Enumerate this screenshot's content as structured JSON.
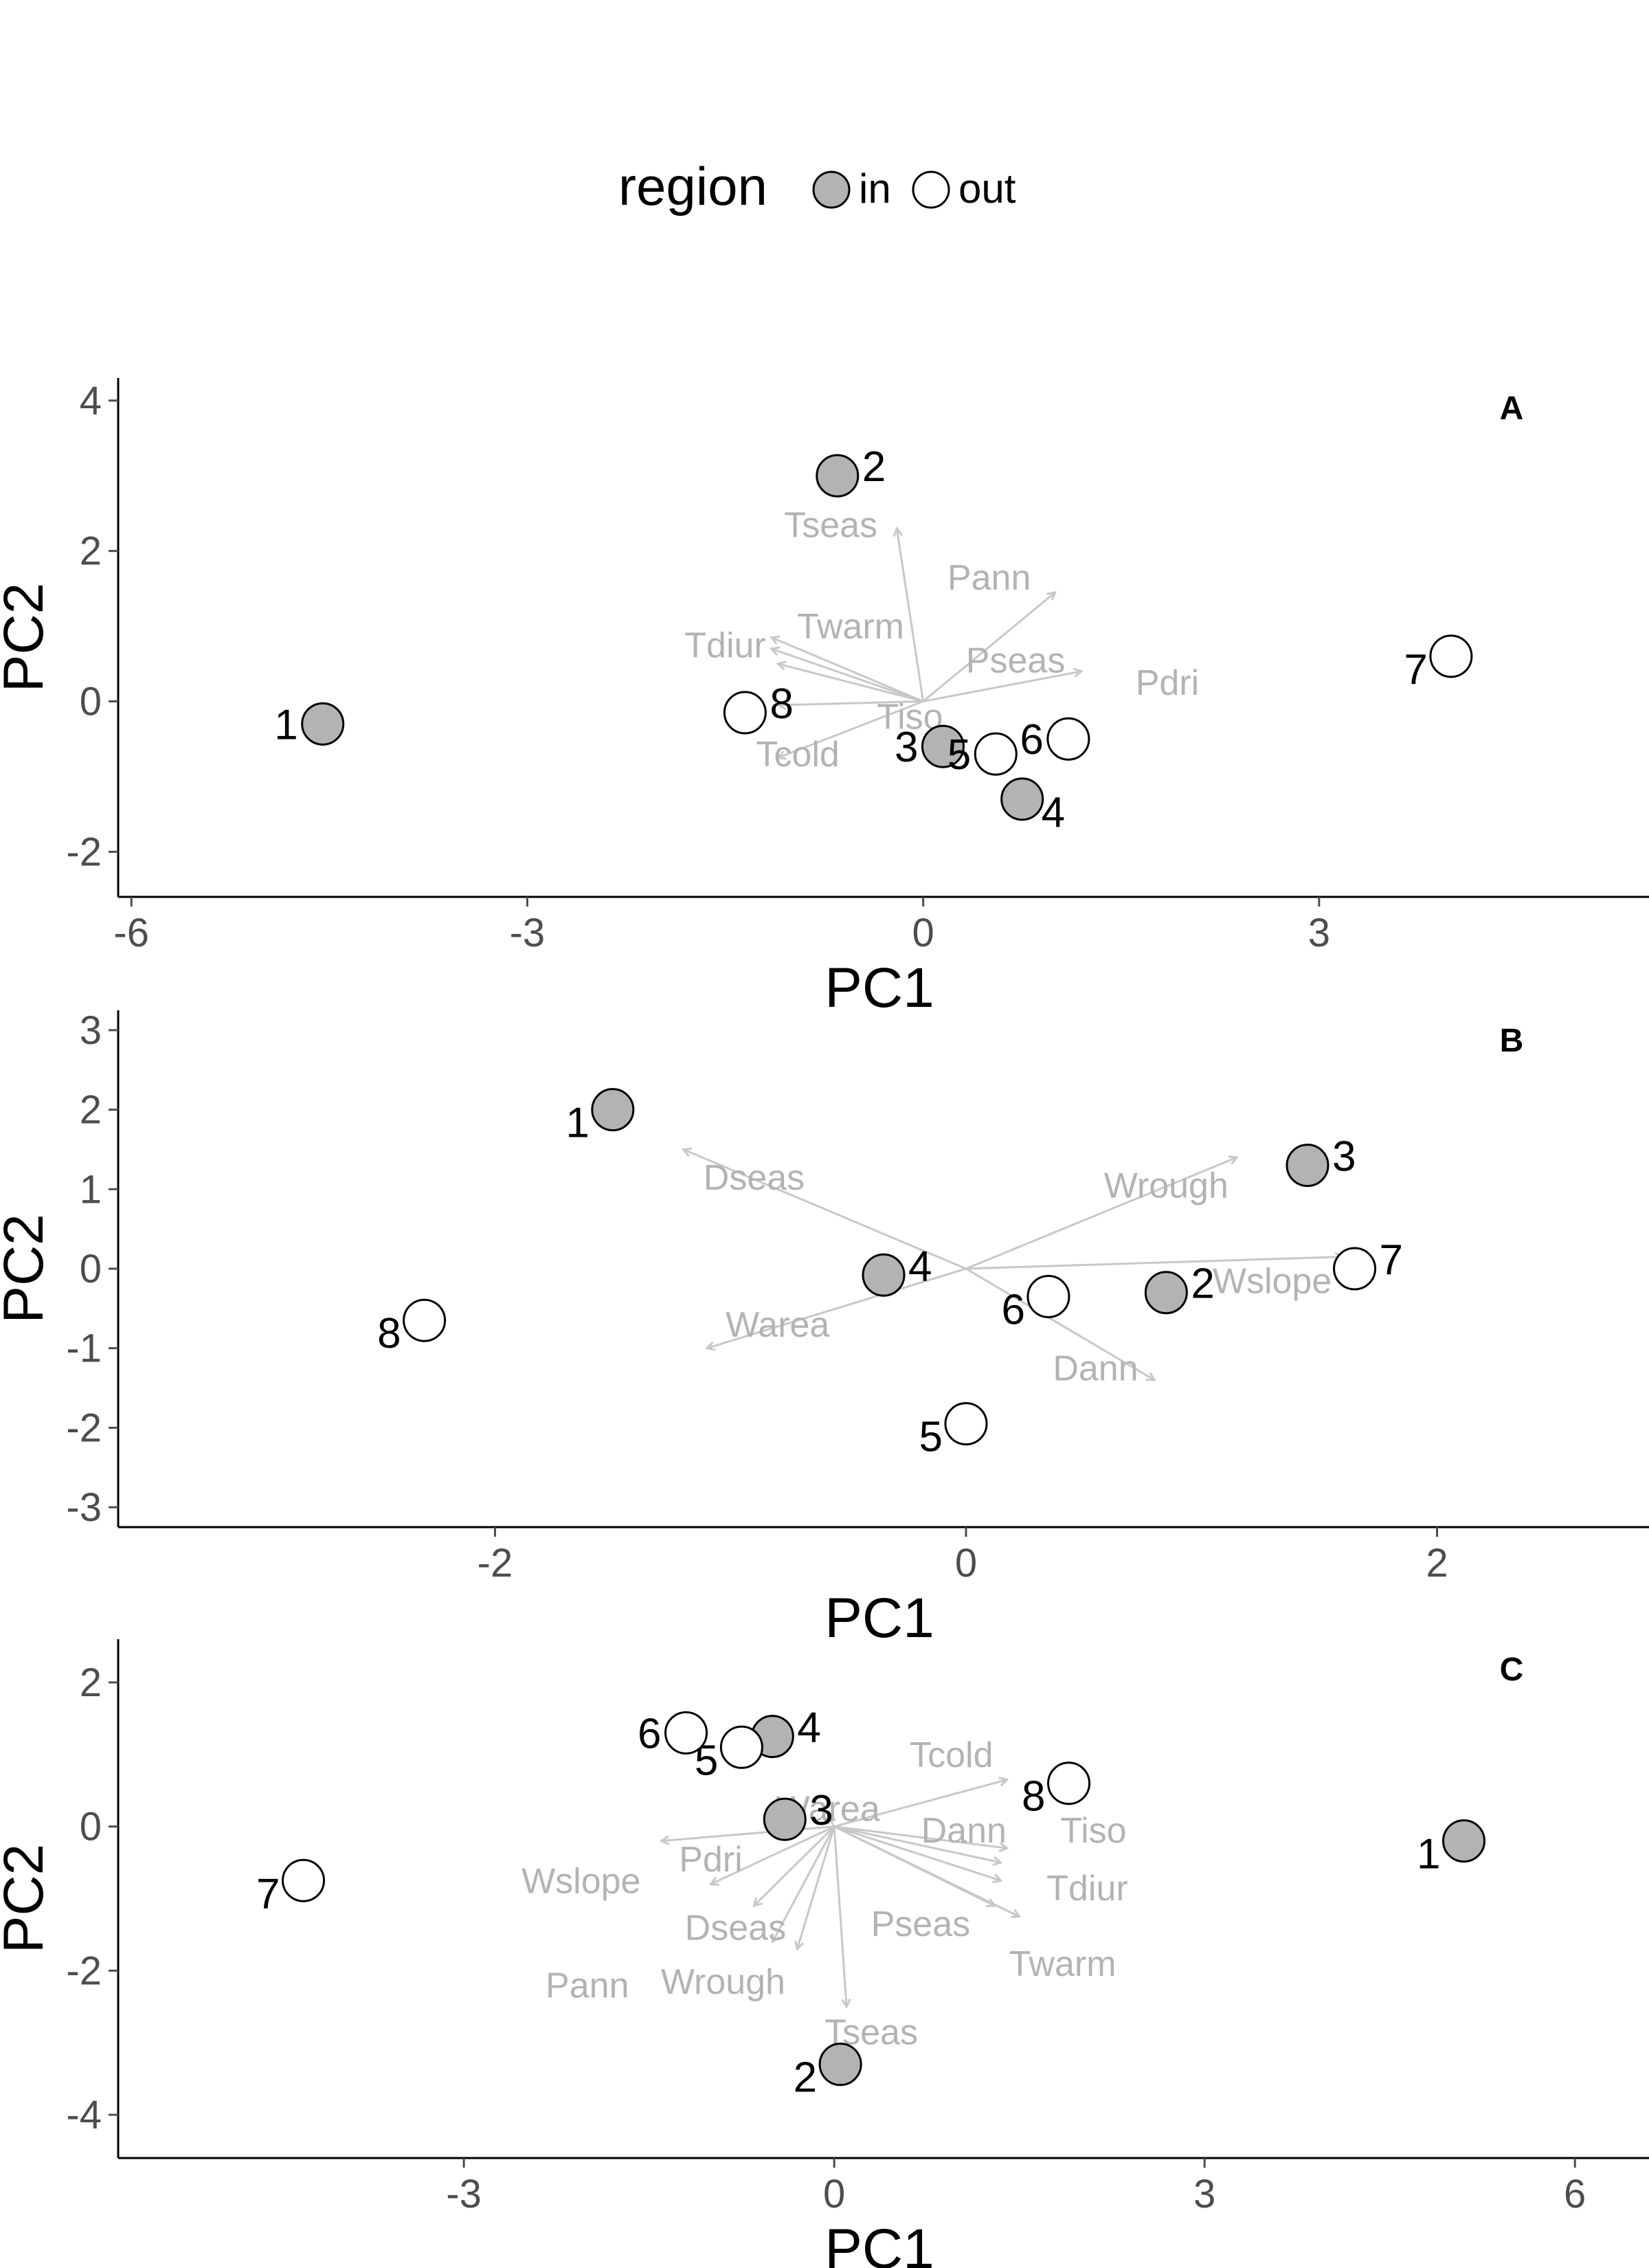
{
  "legend": {
    "title": "region",
    "items": [
      {
        "label": "in",
        "color": "#b3b3b3"
      },
      {
        "label": "out",
        "color": "#ffffff"
      }
    ]
  },
  "colors": {
    "point_stroke": "#000000",
    "arrow": "#c8c8c8",
    "arrow_label": "#b3b3b3",
    "axis": "#000000",
    "tick_label": "#4d4d4d"
  },
  "chart_data": [
    {
      "type": "scatter",
      "tag": "A",
      "xlabel": "PC1",
      "ylabel": "PC2",
      "xlim": [
        -6.1,
        5.5
      ],
      "ylim": [
        -2.6,
        4.3
      ],
      "xticks": [
        -6,
        -3,
        0,
        3
      ],
      "yticks": [
        -2,
        0,
        2,
        4
      ],
      "points": [
        {
          "id": "1",
          "x": -4.55,
          "y": -0.3,
          "region": "in",
          "label_side": "left"
        },
        {
          "id": "2",
          "x": -0.65,
          "y": 3.0,
          "region": "in",
          "label_side": "right"
        },
        {
          "id": "3",
          "x": 0.15,
          "y": -0.6,
          "region": "in",
          "label_side": "left"
        },
        {
          "id": "4",
          "x": 0.75,
          "y": -1.3,
          "region": "in",
          "label_side": "right-below"
        },
        {
          "id": "5",
          "x": 0.55,
          "y": -0.7,
          "region": "out",
          "label_side": "left"
        },
        {
          "id": "6",
          "x": 1.1,
          "y": -0.5,
          "region": "out",
          "label_side": "left"
        },
        {
          "id": "7",
          "x": 4.0,
          "y": 0.6,
          "region": "out",
          "label_side": "left-below"
        },
        {
          "id": "8",
          "x": -1.35,
          "y": -0.15,
          "region": "out",
          "label_side": "right"
        }
      ],
      "loadings": [
        {
          "name": "Tseas",
          "x": -0.2,
          "y": 2.3,
          "label_x": -0.7,
          "label_y": 2.35
        },
        {
          "name": "Pann",
          "x": 1.0,
          "y": 1.45,
          "label_x": 0.5,
          "label_y": 1.65
        },
        {
          "name": "Twarm",
          "x": -1.15,
          "y": 0.85,
          "label_x": -0.55,
          "label_y": 1.0
        },
        {
          "name": "Tdiur",
          "x": -1.15,
          "y": 0.7,
          "label_x": -1.5,
          "label_y": 0.75
        },
        {
          "name": "Pseas",
          "x": -1.1,
          "y": 0.5,
          "label_x": 0.7,
          "label_y": 0.55
        },
        {
          "name": "Pdri",
          "x": 1.2,
          "y": 0.4,
          "label_x": 1.85,
          "label_y": 0.25
        },
        {
          "name": "Tiso",
          "x": -1.1,
          "y": -0.05,
          "label_x": -0.1,
          "label_y": -0.2
        },
        {
          "name": "Tcold",
          "x": -1.1,
          "y": -0.75,
          "label_x": -0.95,
          "label_y": -0.7
        }
      ]
    },
    {
      "type": "scatter",
      "tag": "B",
      "xlabel": "PC1",
      "ylabel": "PC2",
      "xlim": [
        -3.6,
        2.9
      ],
      "ylim": [
        -3.25,
        3.25
      ],
      "xticks": [
        -2,
        0,
        2
      ],
      "yticks": [
        -3,
        -2,
        -1,
        0,
        1,
        2,
        3
      ],
      "points": [
        {
          "id": "1",
          "x": -1.5,
          "y": 2.0,
          "region": "in",
          "label_side": "left-below"
        },
        {
          "id": "2",
          "x": 0.85,
          "y": -0.3,
          "region": "in",
          "label_side": "right"
        },
        {
          "id": "3",
          "x": 1.45,
          "y": 1.3,
          "region": "in",
          "label_side": "right"
        },
        {
          "id": "4",
          "x": -0.35,
          "y": -0.08,
          "region": "in",
          "label_side": "right"
        },
        {
          "id": "5",
          "x": 0.0,
          "y": -1.95,
          "region": "out",
          "label_side": "left-below"
        },
        {
          "id": "6",
          "x": 0.35,
          "y": -0.35,
          "region": "out",
          "label_side": "left-below"
        },
        {
          "id": "7",
          "x": 1.65,
          "y": 0.0,
          "region": "out",
          "label_side": "right"
        },
        {
          "id": "8",
          "x": -2.3,
          "y": -0.65,
          "region": "out",
          "label_side": "left-below"
        }
      ],
      "loadings": [
        {
          "name": "Dseas",
          "x": -1.2,
          "y": 1.5,
          "label_x": -0.9,
          "label_y": 1.15
        },
        {
          "name": "Wrough",
          "x": 1.15,
          "y": 1.4,
          "label_x": 0.85,
          "label_y": 1.05
        },
        {
          "name": "Wslope",
          "x": 1.6,
          "y": 0.15,
          "label_x": 1.3,
          "label_y": -0.15
        },
        {
          "name": "Warea",
          "x": -1.1,
          "y": -1.0,
          "label_x": -0.8,
          "label_y": -0.7
        },
        {
          "name": "Dann",
          "x": 0.8,
          "y": -1.4,
          "label_x": 0.55,
          "label_y": -1.25
        }
      ]
    },
    {
      "type": "scatter",
      "tag": "C",
      "xlabel": "PC1",
      "ylabel": "PC2",
      "xlim": [
        -5.8,
        6.6
      ],
      "ylim": [
        -4.6,
        2.6
      ],
      "xticks": [
        -3,
        0,
        3,
        6
      ],
      "yticks": [
        -4,
        -2,
        0,
        2
      ],
      "points": [
        {
          "id": "1",
          "x": 5.1,
          "y": -0.2,
          "region": "in",
          "label_side": "left-below"
        },
        {
          "id": "2",
          "x": 0.05,
          "y": -3.3,
          "region": "in",
          "label_side": "left-below"
        },
        {
          "id": "3",
          "x": -0.4,
          "y": 0.1,
          "region": "in",
          "label_side": "right"
        },
        {
          "id": "4",
          "x": -0.5,
          "y": 1.25,
          "region": "in",
          "label_side": "right"
        },
        {
          "id": "5",
          "x": -0.75,
          "y": 1.1,
          "region": "out",
          "label_side": "left-below"
        },
        {
          "id": "6",
          "x": -1.2,
          "y": 1.3,
          "region": "out",
          "label_side": "left"
        },
        {
          "id": "7",
          "x": -4.3,
          "y": -0.75,
          "region": "out",
          "label_side": "left-below"
        },
        {
          "id": "8",
          "x": 1.9,
          "y": 0.6,
          "region": "out",
          "label_side": "left-below"
        }
      ],
      "loadings": [
        {
          "name": "Tcold",
          "x": 1.4,
          "y": 0.65,
          "label_x": 0.95,
          "label_y": 1.0
        },
        {
          "name": "Warea",
          "x": -0.05,
          "y": 0.15,
          "label_x": -0.05,
          "label_y": 0.25
        },
        {
          "name": "Dann",
          "x": 1.4,
          "y": -0.3,
          "label_x": 1.05,
          "label_y": -0.05
        },
        {
          "name": "Tiso",
          "x": 1.35,
          "y": -0.5,
          "label_x": 2.1,
          "label_y": -0.05
        },
        {
          "name": "Pdri",
          "x": -1.4,
          "y": -0.2,
          "label_x": -1.0,
          "label_y": -0.45
        },
        {
          "name": "Wslope",
          "x": -1.0,
          "y": -0.8,
          "label_x": -2.05,
          "label_y": -0.75
        },
        {
          "name": "Tdiur",
          "x": 1.35,
          "y": -0.75,
          "label_x": 2.05,
          "label_y": -0.85
        },
        {
          "name": "Dseas",
          "x": -0.65,
          "y": -1.1,
          "label_x": -0.8,
          "label_y": -1.4
        },
        {
          "name": "Pseas",
          "x": 1.3,
          "y": -1.1,
          "label_x": 0.7,
          "label_y": -1.35
        },
        {
          "name": "Twarm",
          "x": 1.5,
          "y": -1.25,
          "label_x": 1.85,
          "label_y": -1.9
        },
        {
          "name": "Pann",
          "x": -0.5,
          "y": -1.6,
          "label_x": -2.0,
          "label_y": -2.2
        },
        {
          "name": "Wrough",
          "x": -0.3,
          "y": -1.7,
          "label_x": -0.9,
          "label_y": -2.15
        },
        {
          "name": "Tseas",
          "x": 0.1,
          "y": -2.5,
          "label_x": 0.3,
          "label_y": -2.85
        }
      ]
    }
  ]
}
